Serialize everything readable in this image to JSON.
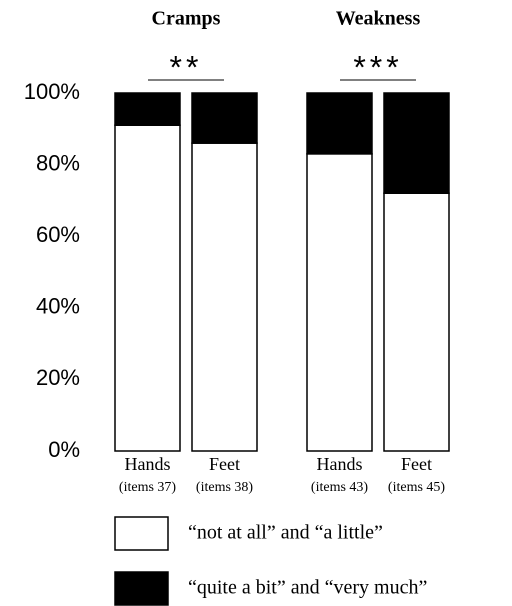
{
  "chart_data": {
    "type": "stacked_bar",
    "groups": [
      {
        "name": "Cramps",
        "significance": "**",
        "categories": [
          "Hands",
          "Feet"
        ],
        "notes": [
          "(items 37)",
          "(items 38)"
        ]
      },
      {
        "name": "Weakness",
        "significance": "***",
        "categories": [
          "Hands",
          "Feet"
        ],
        "notes": [
          "(items 43)",
          "(items 45)"
        ]
      }
    ],
    "series": [
      {
        "name": "“not at all” and “a little”",
        "color": "#ffffff",
        "values": [
          91,
          86,
          83,
          72
        ]
      },
      {
        "name": "“quite a bit” and “very much”",
        "color": "#000000",
        "values": [
          9,
          14,
          17,
          28
        ]
      }
    ],
    "ylim": [
      0,
      100
    ],
    "yticks": [
      {
        "value": 0,
        "label": "0%"
      },
      {
        "value": 20,
        "label": "20%"
      },
      {
        "value": 40,
        "label": "40%"
      },
      {
        "value": 60,
        "label": "60%"
      },
      {
        "value": 80,
        "label": "80%"
      },
      {
        "value": 100,
        "label": "100%"
      }
    ]
  }
}
